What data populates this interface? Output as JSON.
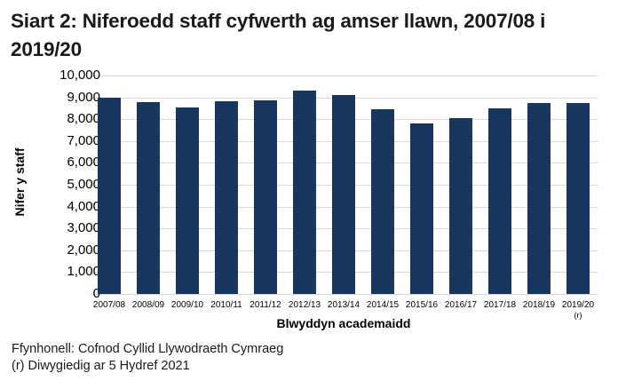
{
  "title": "Siart 2: Niferoedd staff cyfwerth ag amser llawn, 2007/08 i 2019/20",
  "colors": {
    "bar": "#17375e",
    "grid": "#d9d9d9"
  },
  "footnotes": {
    "source": "Ffynhonell: Cofnod Cyllid Llywodraeth Cymraeg",
    "revised": "(r) Diwygiedig ar 5 Hydref 2021"
  },
  "chart_data": {
    "type": "bar",
    "title": "Siart 2: Niferoedd staff cyfwerth ag amser llawn, 2007/08 i 2019/20",
    "xlabel": "Blwyddyn academaidd",
    "ylabel": "Nifer y staff",
    "ylim": [
      0,
      10000
    ],
    "yticks": [
      "0",
      "1,000",
      "2,000",
      "3,000",
      "4,000",
      "5,000",
      "6,000",
      "7,000",
      "8,000",
      "9,000",
      "10,000"
    ],
    "grid": true,
    "legend": null,
    "categories": [
      "2007/08",
      "2008/09",
      "2009/10",
      "2010/11",
      "2011/12",
      "2012/13",
      "2013/14",
      "2014/15",
      "2015/16",
      "2016/17",
      "2017/18",
      "2018/19",
      "2019/20"
    ],
    "category_notes": [
      "",
      "",
      "",
      "",
      "",
      "",
      "",
      "",
      "",
      "",
      "",
      "",
      "(r)"
    ],
    "values": [
      9000,
      8780,
      8540,
      8820,
      8850,
      9300,
      9100,
      8450,
      7800,
      8050,
      8500,
      8750,
      8750
    ]
  }
}
